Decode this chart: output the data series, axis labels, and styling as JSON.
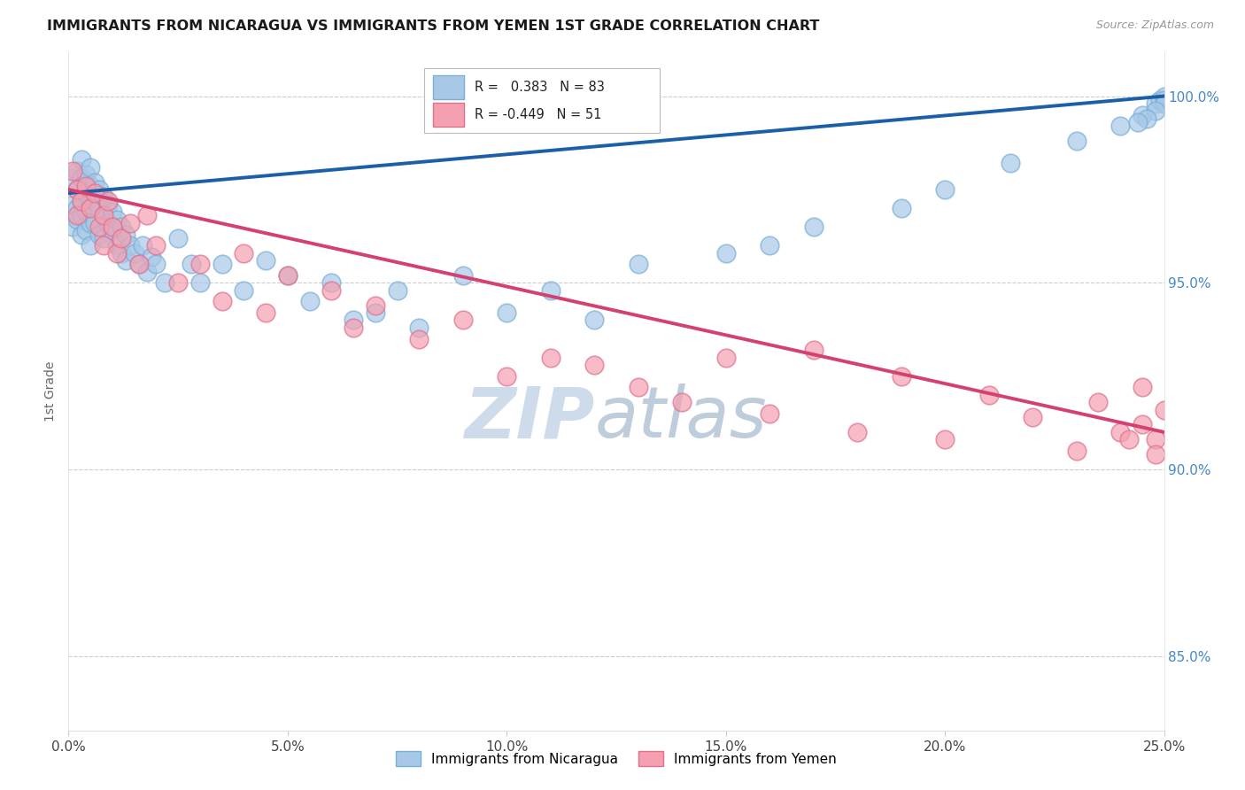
{
  "title": "IMMIGRANTS FROM NICARAGUA VS IMMIGRANTS FROM YEMEN 1ST GRADE CORRELATION CHART",
  "source": "Source: ZipAtlas.com",
  "ylabel": "1st Grade",
  "xlim": [
    0.0,
    0.25
  ],
  "ylim": [
    0.83,
    1.012
  ],
  "yticks": [
    0.85,
    0.9,
    0.95,
    1.0
  ],
  "ytick_labels": [
    "85.0%",
    "90.0%",
    "95.0%",
    "100.0%"
  ],
  "xticks": [
    0.0,
    0.05,
    0.1,
    0.15,
    0.2,
    0.25
  ],
  "xtick_labels": [
    "0.0%",
    "5.0%",
    "10.0%",
    "15.0%",
    "20.0%",
    "25.0%"
  ],
  "legend_entries": [
    "Immigrants from Nicaragua",
    "Immigrants from Yemen"
  ],
  "r_nicaragua": 0.383,
  "n_nicaragua": 83,
  "r_yemen": -0.449,
  "n_yemen": 51,
  "blue_color": "#a8c8e8",
  "blue_edge_color": "#7aafd4",
  "pink_color": "#f4a0b0",
  "pink_edge_color": "#e07090",
  "blue_line_color": "#1a5fa8",
  "pink_line_color": "#d44070",
  "watermark_zip_color": "#c8d8e8",
  "watermark_atlas_color": "#b8c8d8",
  "grid_color": "#cccccc",
  "right_axis_color": "#4488cc",
  "nicaragua_x": [
    0.001,
    0.001,
    0.001,
    0.002,
    0.002,
    0.002,
    0.002,
    0.003,
    0.003,
    0.003,
    0.003,
    0.003,
    0.004,
    0.004,
    0.004,
    0.004,
    0.005,
    0.005,
    0.005,
    0.005,
    0.005,
    0.006,
    0.006,
    0.006,
    0.007,
    0.007,
    0.007,
    0.008,
    0.008,
    0.008,
    0.009,
    0.009,
    0.01,
    0.01,
    0.011,
    0.011,
    0.012,
    0.012,
    0.013,
    0.013,
    0.014,
    0.015,
    0.016,
    0.017,
    0.018,
    0.019,
    0.02,
    0.022,
    0.025,
    0.028,
    0.03,
    0.035,
    0.04,
    0.045,
    0.05,
    0.055,
    0.06,
    0.065,
    0.07,
    0.075,
    0.08,
    0.09,
    0.1,
    0.11,
    0.12,
    0.13,
    0.15,
    0.16,
    0.17,
    0.19,
    0.2,
    0.215,
    0.23,
    0.24,
    0.245,
    0.248,
    0.249,
    0.25,
    0.25,
    0.25,
    0.248,
    0.246,
    0.244
  ],
  "nicaragua_y": [
    0.978,
    0.971,
    0.965,
    0.98,
    0.975,
    0.97,
    0.967,
    0.983,
    0.978,
    0.972,
    0.968,
    0.963,
    0.979,
    0.974,
    0.969,
    0.964,
    0.981,
    0.976,
    0.971,
    0.966,
    0.96,
    0.977,
    0.972,
    0.966,
    0.975,
    0.97,
    0.963,
    0.973,
    0.968,
    0.962,
    0.971,
    0.966,
    0.969,
    0.964,
    0.967,
    0.96,
    0.965,
    0.958,
    0.963,
    0.956,
    0.96,
    0.958,
    0.955,
    0.96,
    0.953,
    0.957,
    0.955,
    0.95,
    0.962,
    0.955,
    0.95,
    0.955,
    0.948,
    0.956,
    0.952,
    0.945,
    0.95,
    0.94,
    0.942,
    0.948,
    0.938,
    0.952,
    0.942,
    0.948,
    0.94,
    0.955,
    0.958,
    0.96,
    0.965,
    0.97,
    0.975,
    0.982,
    0.988,
    0.992,
    0.995,
    0.998,
    0.999,
    1.0,
    0.999,
    0.998,
    0.996,
    0.994,
    0.993
  ],
  "yemen_x": [
    0.001,
    0.002,
    0.002,
    0.003,
    0.004,
    0.005,
    0.006,
    0.007,
    0.008,
    0.008,
    0.009,
    0.01,
    0.011,
    0.012,
    0.014,
    0.016,
    0.018,
    0.02,
    0.025,
    0.03,
    0.035,
    0.04,
    0.045,
    0.05,
    0.06,
    0.065,
    0.07,
    0.08,
    0.09,
    0.1,
    0.11,
    0.12,
    0.13,
    0.14,
    0.15,
    0.16,
    0.17,
    0.18,
    0.19,
    0.2,
    0.21,
    0.22,
    0.23,
    0.235,
    0.24,
    0.245,
    0.248,
    0.25,
    0.248,
    0.245,
    0.242
  ],
  "yemen_y": [
    0.98,
    0.975,
    0.968,
    0.972,
    0.976,
    0.97,
    0.974,
    0.965,
    0.968,
    0.96,
    0.972,
    0.965,
    0.958,
    0.962,
    0.966,
    0.955,
    0.968,
    0.96,
    0.95,
    0.955,
    0.945,
    0.958,
    0.942,
    0.952,
    0.948,
    0.938,
    0.944,
    0.935,
    0.94,
    0.925,
    0.93,
    0.928,
    0.922,
    0.918,
    0.93,
    0.915,
    0.932,
    0.91,
    0.925,
    0.908,
    0.92,
    0.914,
    0.905,
    0.918,
    0.91,
    0.922,
    0.908,
    0.916,
    0.904,
    0.912,
    0.908
  ]
}
